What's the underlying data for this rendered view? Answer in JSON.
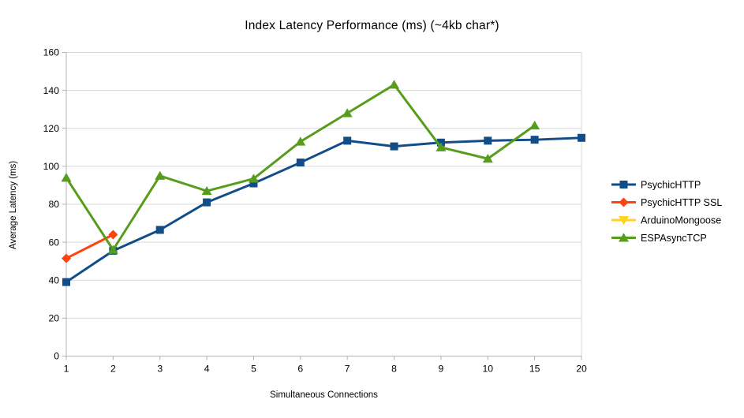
{
  "chart_data": {
    "type": "line",
    "title": "Index Latency Performance (ms) (~4kb char*)",
    "xlabel": "Simultaneous Connections",
    "ylabel": "Average Latency (ms)",
    "categories": [
      "1",
      "2",
      "3",
      "4",
      "5",
      "6",
      "7",
      "8",
      "9",
      "10",
      "15",
      "20"
    ],
    "ylim": [
      0,
      160
    ],
    "ytick_step": 20,
    "grid": true,
    "legend_position": "right",
    "colors": {
      "grid": "#d9d9d9",
      "axis": "#b3b3b3",
      "text": "#000000"
    },
    "series": [
      {
        "name": "PsychicHTTP",
        "color": "#134d87",
        "marker": "square",
        "values": [
          39,
          55.5,
          66.5,
          81,
          91,
          102,
          113.5,
          110.5,
          112.5,
          113.5,
          114,
          115
        ]
      },
      {
        "name": "PsychicHTTP SSL",
        "color": "#ff420e",
        "marker": "diamond",
        "values": [
          51.5,
          64,
          null,
          null,
          null,
          null,
          null,
          null,
          null,
          null,
          null,
          null
        ]
      },
      {
        "name": "ArduinoMongoose",
        "color": "#ffd320",
        "marker": "triangle-down",
        "values": [
          null,
          null,
          null,
          null,
          null,
          null,
          null,
          null,
          null,
          null,
          null,
          null
        ]
      },
      {
        "name": "ESPAsyncTCP",
        "color": "#579d1c",
        "marker": "triangle-up",
        "values": [
          94,
          56,
          95,
          87,
          93.5,
          113,
          128,
          143,
          110,
          104,
          121.5,
          null
        ]
      }
    ]
  }
}
